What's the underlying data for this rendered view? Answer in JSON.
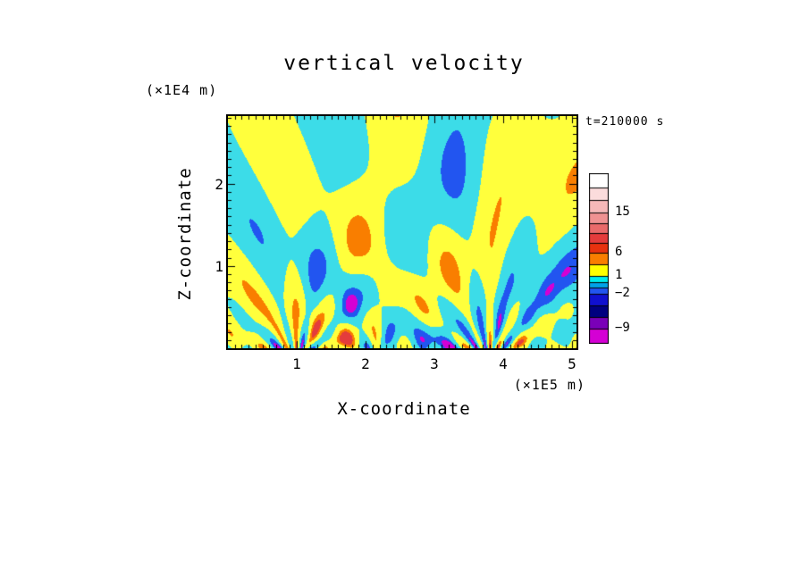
{
  "title": "vertical velocity",
  "annotations": {
    "time_label": "t=210000 s",
    "y_units": "(×1E4 m)",
    "x_units": "(×1E5 m)"
  },
  "axes": {
    "x_label": "X-coordinate",
    "y_label": "Z-coordinate",
    "x_tick_labels": [
      "1",
      "2",
      "3",
      "4",
      "5"
    ],
    "y_tick_labels": [
      "1",
      "2"
    ]
  },
  "chart_data": {
    "type": "heatmap",
    "title": "vertical velocity",
    "xlabel": "X-coordinate",
    "ylabel": "Z-coordinate",
    "x_units": "(×1E5 m)",
    "y_units": "(×1E4 m)",
    "time_annotation": "t=210000 s",
    "xlim": [
      0,
      5.06
    ],
    "ylim": [
      0,
      2.82
    ],
    "x_ticks": [
      1,
      2,
      3,
      4,
      5
    ],
    "y_ticks": [
      1,
      2
    ],
    "x_minor_step": 0.1,
    "y_minor_step": 0.1,
    "grid": false,
    "legend_position": "right-colorbar",
    "description": "Filled-contour field of vertical velocity: alternating positive (yellow) and negative (cyan) gravity-wave phase fans radiating upward from sources near x=1.0 and x=3.8, fine vertical striping near the lower boundary, and small strong extrema (red/orange positive, blue/magenta negative) at the source points.",
    "ticks": {
      "major_len": 8,
      "minor_len": 4
    },
    "colorbar": {
      "labels": [
        {
          "text": "15",
          "offset": 44
        },
        {
          "text": "6",
          "offset": 89
        },
        {
          "text": "1",
          "offset": 115
        },
        {
          "text": "−2",
          "offset": 135
        },
        {
          "text": "−9",
          "offset": 174
        }
      ],
      "segments": [
        {
          "color": "#ffffff",
          "h": 16
        },
        {
          "color": "#fbdcdc",
          "h": 14
        },
        {
          "color": "#f5b8b8",
          "h": 14
        },
        {
          "color": "#ef9292",
          "h": 12
        },
        {
          "color": "#e96a6a",
          "h": 11
        },
        {
          "color": "#e43c3c",
          "h": 11
        },
        {
          "color": "#e8320f",
          "h": 11
        },
        {
          "color": "#f97e00",
          "h": 13
        },
        {
          "color": "#ffff00",
          "h": 13
        },
        {
          "color": "#00eaea",
          "h": 7
        },
        {
          "color": "#00a2e8",
          "h": 6
        },
        {
          "color": "#2255f0",
          "h": 7
        },
        {
          "color": "#1010cf",
          "h": 13
        },
        {
          "color": "#000080",
          "h": 13
        },
        {
          "color": "#7a00b8",
          "h": 13
        },
        {
          "color": "#d400d4",
          "h": 16
        }
      ]
    },
    "field": {
      "colors": {
        "positive": "#ffff3c",
        "negative": "#3cdce8",
        "strong_positive": "#f97e00",
        "very_strong_positive": "#e43c3c",
        "strong_negative": "#2255f0",
        "very_strong_negative": "#d400d4"
      },
      "thresholds": {
        "strong": 2.1,
        "very_strong": 3.0
      },
      "z_offset": 0.22,
      "source_boost": 2.8,
      "boost_decay": 2.0,
      "background": {
        "amp": 0.45,
        "kx": 1.6,
        "kz": 2.8,
        "phase": 0.7
      },
      "bottom_layer": {
        "amp": 1.25,
        "decay": 0.32,
        "k": 15,
        "kz": 6
      },
      "sources": [
        {
          "x": 1.0,
          "modes": 11,
          "amp": 1.0,
          "curl": 0.4
        },
        {
          "x": 2.15,
          "modes": 7,
          "amp": 0.55,
          "curl": 0.2
        },
        {
          "x": 3.8,
          "modes": 13,
          "amp": 1.0,
          "curl": -0.3
        }
      ]
    }
  }
}
